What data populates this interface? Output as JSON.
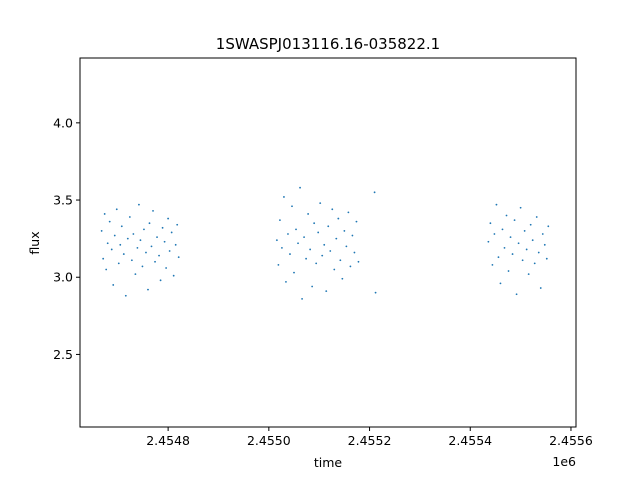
{
  "chart_data": {
    "type": "scatter",
    "title": "1SWASPJ013116.16-035822.1",
    "xlabel": "time",
    "ylabel": "flux",
    "x_offset_label": "1e6",
    "xlim": [
      2454625,
      2455610
    ],
    "ylim": [
      2.03,
      4.42
    ],
    "xticks": [
      2.4548,
      2.455,
      2.4552,
      2.4554,
      2.4556
    ],
    "xtick_labels": [
      "2.4548",
      "2.4550",
      "2.4552",
      "2.4554",
      "2.4556"
    ],
    "yticks": [
      2.5,
      3.0,
      3.5,
      4.0
    ],
    "ytick_labels": [
      "2.5",
      "3.0",
      "3.5",
      "4.0"
    ],
    "grid": false,
    "marker_color": "#1f77b4",
    "series": [
      {
        "x": [
          2454668,
          2454671,
          2454674,
          2454677,
          2454680,
          2454684,
          2454688,
          2454691,
          2454694,
          2454698,
          2454702,
          2454705,
          2454708,
          2454712,
          2454716,
          2454720,
          2454724,
          2454728,
          2454731,
          2454735,
          2454739,
          2454742,
          2454745,
          2454749,
          2454752,
          2454756,
          2454760,
          2454763,
          2454767,
          2454770,
          2454774,
          2454778,
          2454782,
          2454785,
          2454789,
          2454793,
          2454796,
          2454800,
          2454803,
          2454807,
          2454811,
          2454815,
          2454818,
          2454821,
          2455016,
          2455019,
          2455022,
          2455026,
          2455030,
          2455034,
          2455038,
          2455042,
          2455046,
          2455050,
          2455054,
          2455058,
          2455062,
          2455066,
          2455070,
          2455074,
          2455078,
          2455082,
          2455086,
          2455090,
          2455094,
          2455098,
          2455102,
          2455106,
          2455110,
          2455114,
          2455118,
          2455122,
          2455126,
          2455130,
          2455134,
          2455138,
          2455142,
          2455146,
          2455150,
          2455154,
          2455158,
          2455162,
          2455166,
          2455170,
          2455174,
          2455178,
          2455210,
          2455212,
          2455436,
          2455440,
          2455444,
          2455448,
          2455452,
          2455456,
          2455460,
          2455464,
          2455468,
          2455472,
          2455476,
          2455480,
          2455484,
          2455488,
          2455492,
          2455496,
          2455500,
          2455504,
          2455508,
          2455512,
          2455516,
          2455520,
          2455524,
          2455528,
          2455532,
          2455536,
          2455540,
          2455544,
          2455548,
          2455552,
          2455555
        ],
        "y": [
          3.3,
          3.12,
          3.41,
          3.05,
          3.22,
          3.36,
          3.18,
          2.95,
          3.27,
          3.44,
          3.09,
          3.21,
          3.33,
          3.15,
          2.88,
          3.25,
          3.39,
          3.11,
          3.28,
          3.02,
          3.19,
          3.47,
          3.24,
          3.07,
          3.31,
          3.16,
          2.92,
          3.35,
          3.2,
          3.43,
          3.1,
          3.26,
          3.14,
          2.98,
          3.32,
          3.23,
          3.06,
          3.38,
          3.17,
          3.29,
          3.01,
          3.21,
          3.34,
          3.13,
          3.24,
          3.08,
          3.37,
          3.19,
          3.52,
          2.97,
          3.28,
          3.15,
          3.46,
          3.03,
          3.31,
          3.22,
          3.58,
          2.86,
          3.26,
          3.12,
          3.41,
          3.18,
          2.94,
          3.35,
          3.09,
          3.29,
          3.48,
          3.14,
          3.21,
          2.91,
          3.33,
          3.17,
          3.44,
          3.05,
          3.25,
          3.38,
          3.11,
          2.99,
          3.3,
          3.2,
          3.42,
          3.07,
          3.27,
          3.16,
          3.36,
          3.1,
          3.55,
          2.9,
          3.23,
          3.35,
          3.08,
          3.28,
          3.47,
          3.13,
          2.96,
          3.31,
          3.19,
          3.4,
          3.04,
          3.26,
          3.15,
          3.37,
          2.89,
          3.22,
          3.45,
          3.11,
          3.3,
          3.18,
          3.02,
          3.34,
          3.24,
          3.09,
          3.39,
          3.16,
          2.93,
          3.28,
          3.21,
          3.12,
          3.33
        ]
      }
    ]
  }
}
